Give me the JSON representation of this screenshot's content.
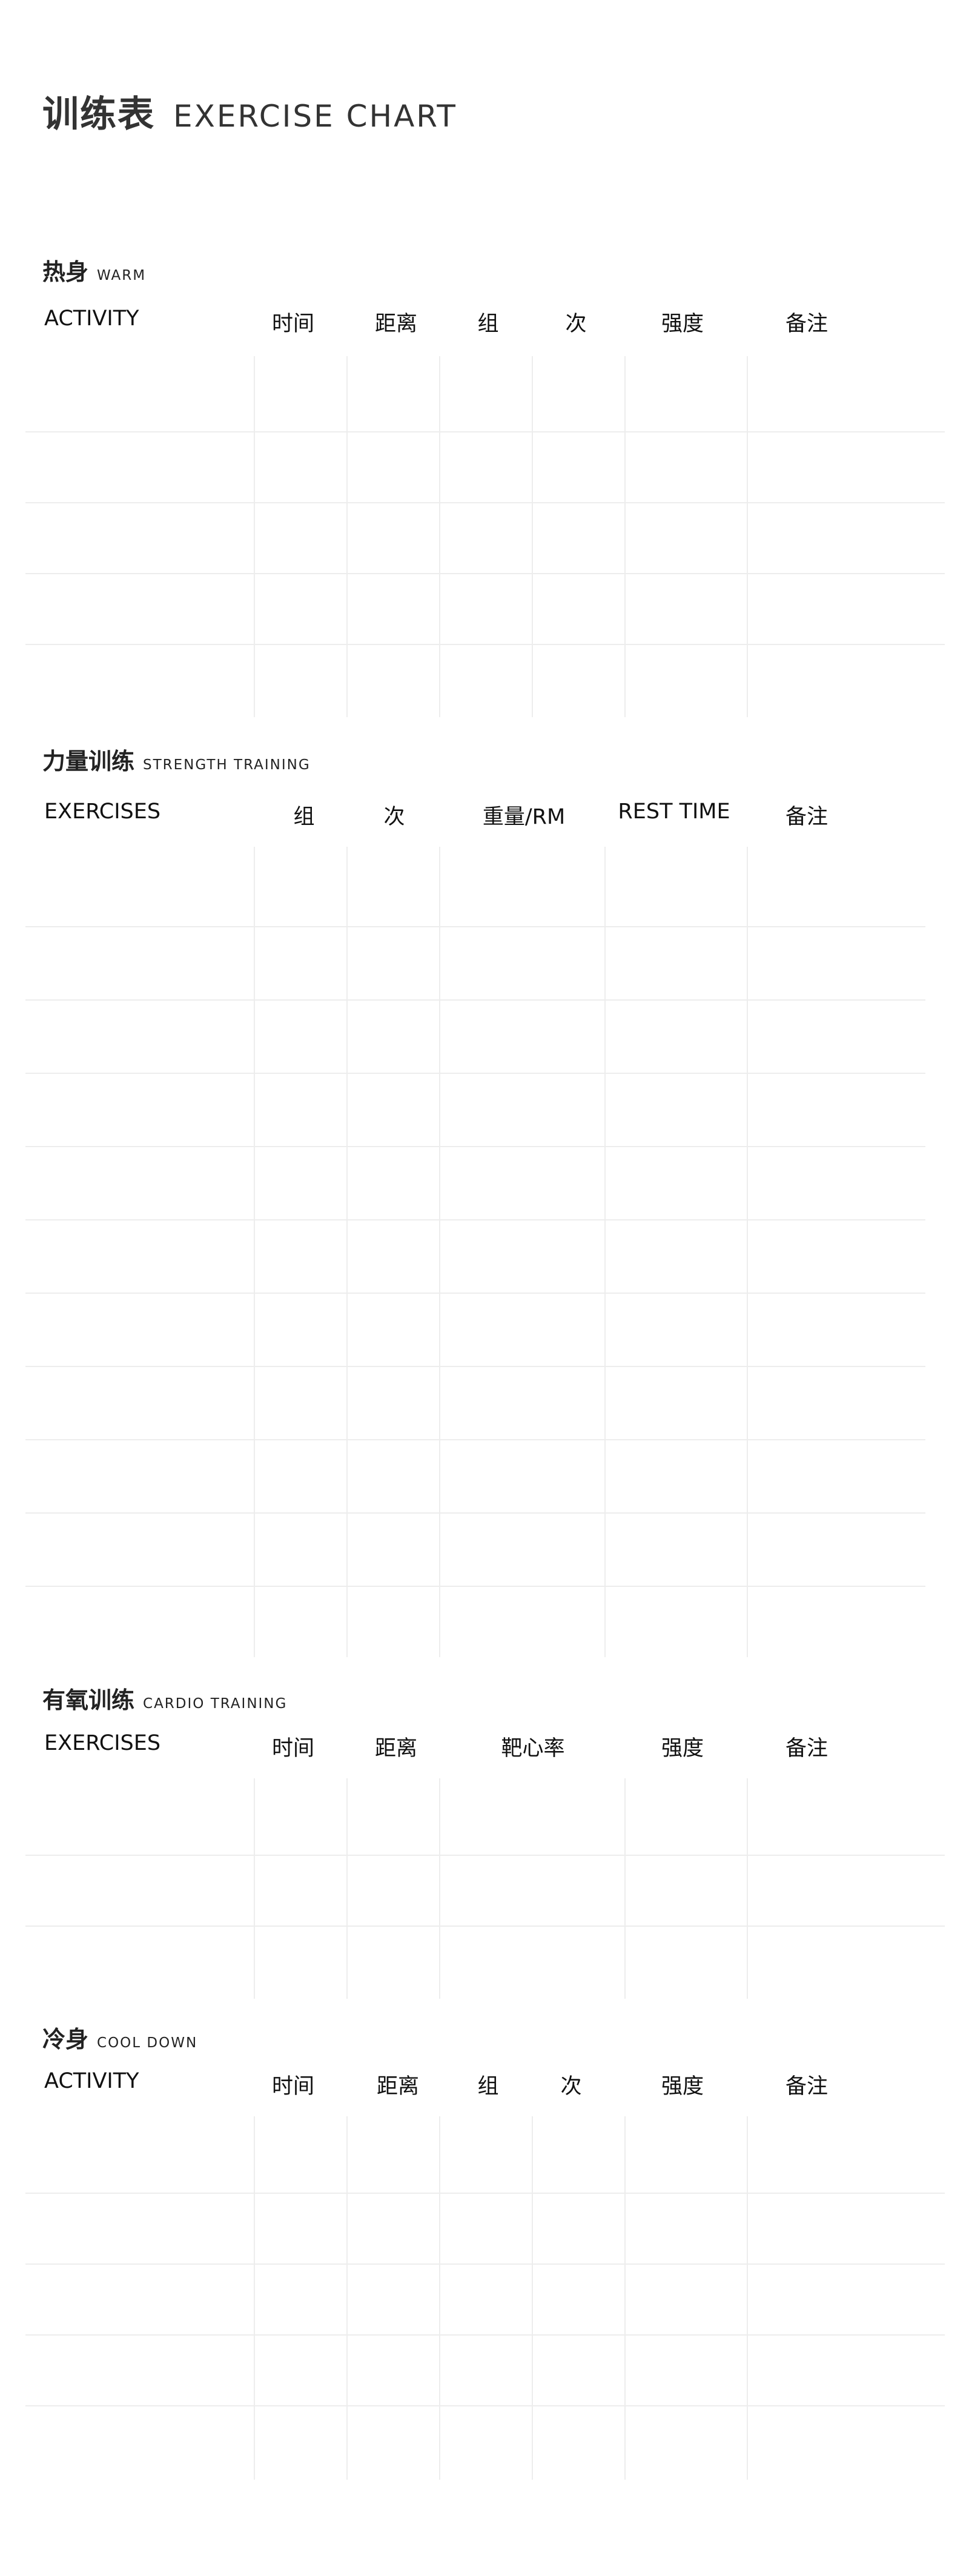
{
  "title": {
    "zh": "训练表",
    "en": "EXERCISE CHART"
  },
  "warm": {
    "zh": "热身",
    "en": "WARM",
    "headers": [
      "ACTIVITY",
      "时间",
      "距离",
      "组",
      "次",
      "强度",
      "备注"
    ],
    "row_count": 5
  },
  "strength": {
    "zh": "力量训练",
    "en": "STRENGTH TRAINING",
    "headers": [
      "EXERCISES",
      "组",
      "次",
      "重量/RM",
      "REST TIME",
      "备注"
    ],
    "row_count": 11
  },
  "cardio": {
    "zh": "有氧训练",
    "en": "CARDIO TRAINING",
    "headers": [
      "EXERCISES",
      "时间",
      "距离",
      "靶心率",
      "强度",
      "备注"
    ],
    "row_count": 3
  },
  "cooldown": {
    "zh": "冷身",
    "en": "COOL DOWN",
    "headers": [
      "ACTIVITY",
      "时间",
      "距离",
      "组",
      "次",
      "强度",
      "备注"
    ],
    "row_count": 5
  }
}
